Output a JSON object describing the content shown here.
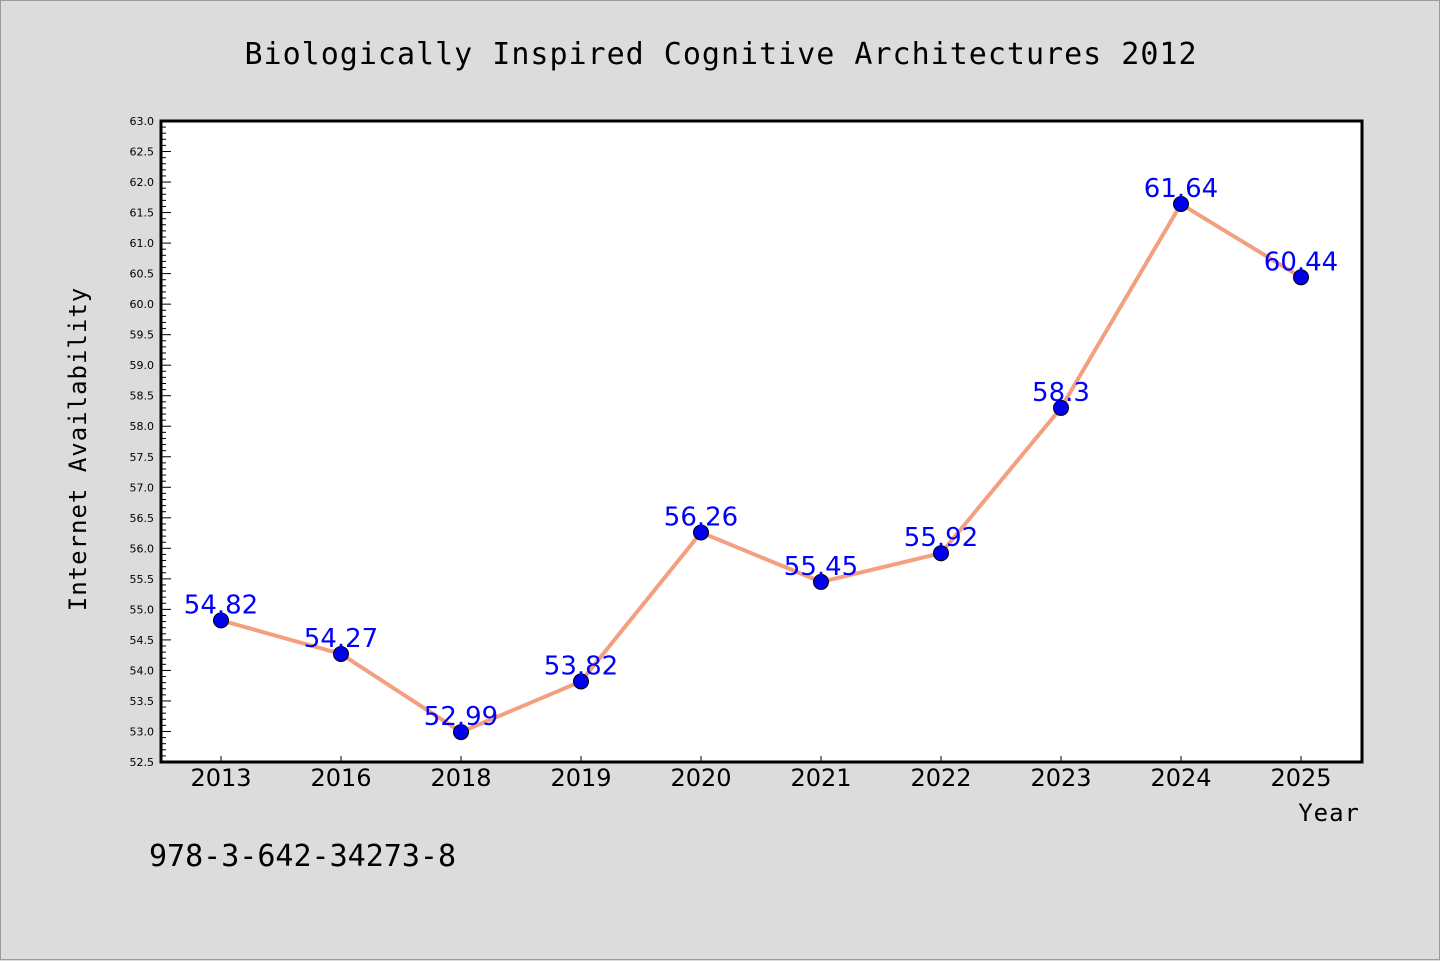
{
  "chart_data": {
    "type": "line",
    "title": "Biologically Inspired Cognitive Architectures 2012",
    "xlabel": "Year",
    "ylabel": "Internet Availability",
    "categories": [
      "2013",
      "2016",
      "2018",
      "2019",
      "2020",
      "2021",
      "2022",
      "2023",
      "2024",
      "2025"
    ],
    "series": [
      {
        "values": [
          54.82,
          54.27,
          52.99,
          53.82,
          56.26,
          55.45,
          55.92,
          58.3,
          61.64,
          60.44
        ],
        "data_labels": [
          "54.82",
          "54.27",
          "52.99",
          "53.82",
          "56.26",
          "55.45",
          "55.92",
          "58.3",
          "61.64",
          "60.44"
        ],
        "line_color": "#f4a080",
        "marker_color": "#0000ee",
        "label_color": "#0000ff"
      }
    ],
    "ylim": [
      52.5,
      63.0
    ],
    "yticks": [
      "52.5",
      "53.0",
      "53.5",
      "54.0",
      "54.5",
      "55.0",
      "55.5",
      "56.0",
      "56.5",
      "57.0",
      "57.5",
      "58.0",
      "58.5",
      "59.0",
      "59.5",
      "60.0",
      "60.5",
      "61.0",
      "61.5",
      "62.0",
      "62.5",
      "63.0"
    ],
    "grid": false,
    "legend": "none"
  },
  "footer_text": "978-3-642-34273-8",
  "colors": {
    "background": "#dcdcdc",
    "plot_background": "#ffffff",
    "frame": "#000000"
  }
}
